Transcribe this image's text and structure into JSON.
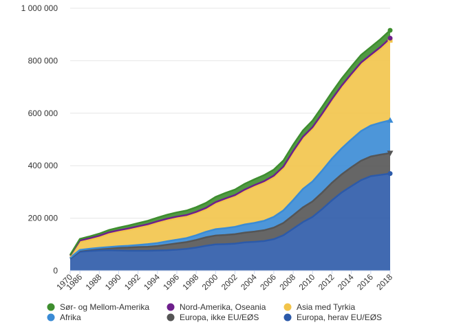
{
  "chart_data": {
    "type": "area",
    "stacked": true,
    "x": [
      1970,
      1986,
      1987,
      1988,
      1989,
      1990,
      1991,
      1992,
      1993,
      1994,
      1995,
      1996,
      1997,
      1998,
      1999,
      2000,
      2001,
      2002,
      2003,
      2004,
      2005,
      2006,
      2007,
      2008,
      2009,
      2010,
      2011,
      2012,
      2013,
      2014,
      2015,
      2016,
      2017,
      2018
    ],
    "x_tick_labels": [
      "1970",
      "1986",
      "1988",
      "1990",
      "1992",
      "1994",
      "1996",
      "1998",
      "2000",
      "2002",
      "2004",
      "2006",
      "2008",
      "2010",
      "2012",
      "2014",
      "2016",
      "2018"
    ],
    "y_ticks": [
      0,
      200000,
      400000,
      600000,
      800000,
      1000000
    ],
    "y_tick_labels": [
      "0",
      "200 000",
      "400 000",
      "600 000",
      "800 000",
      "1 000 000"
    ],
    "ylim": [
      0,
      1000000
    ],
    "grid": "horizontal",
    "legend_position": "bottom",
    "series": [
      {
        "name": "Europa, herav EU/EØS",
        "color": "#2c5aa9",
        "marker": "circle",
        "values": [
          45000,
          72000,
          75000,
          77000,
          78000,
          77000,
          76000,
          76000,
          76000,
          77000,
          78000,
          80000,
          83000,
          88000,
          95000,
          100000,
          101000,
          103000,
          108000,
          110000,
          113000,
          120000,
          135000,
          160000,
          185000,
          205000,
          235000,
          268000,
          298000,
          322000,
          345000,
          360000,
          365000,
          370000
        ]
      },
      {
        "name": "Europa, ikke EU/EØS",
        "color": "#555555",
        "marker": "triangle-down",
        "values": [
          3000,
          5000,
          6000,
          7000,
          8000,
          10000,
          12000,
          14000,
          15000,
          17000,
          21000,
          24000,
          26000,
          29000,
          32000,
          34000,
          35000,
          36000,
          37000,
          39000,
          41000,
          44000,
          47000,
          51000,
          56000,
          59000,
          63000,
          67000,
          69000,
          72000,
          74000,
          75000,
          77000,
          78000
        ]
      },
      {
        "name": "Afrika",
        "color": "#3a8bd5",
        "marker": "triangle-up",
        "values": [
          1000,
          2000,
          2500,
          3000,
          4000,
          6000,
          7000,
          8000,
          10000,
          11000,
          13000,
          14000,
          15000,
          18000,
          21000,
          24000,
          26000,
          28000,
          31000,
          33000,
          36000,
          41000,
          48000,
          58000,
          70000,
          76000,
          84000,
          92000,
          99000,
          106000,
          113000,
          118000,
          122000,
          125000
        ]
      },
      {
        "name": "Asia med Tyrkia",
        "color": "#f2c44a",
        "marker": "square",
        "values": [
          5000,
          30000,
          34000,
          40000,
          50000,
          55000,
          60000,
          65000,
          70000,
          77000,
          80000,
          82000,
          82000,
          83000,
          85000,
          97000,
          107000,
          115000,
          127000,
          138000,
          145000,
          150000,
          160000,
          180000,
          192000,
          200000,
          210000,
          220000,
          232000,
          242000,
          253000,
          262000,
          280000,
          305000
        ]
      },
      {
        "name": "Nord-Amerika, Oseania",
        "color": "#6e1f8c",
        "marker": "circle",
        "values": [
          4000,
          6000,
          6000,
          6000,
          6000,
          6000,
          6000,
          6000,
          6000,
          6000,
          6000,
          6000,
          6000,
          6000,
          6000,
          6000,
          6000,
          6000,
          6000,
          6000,
          6000,
          7000,
          7000,
          7000,
          7000,
          7000,
          7000,
          7000,
          7000,
          8000,
          8000,
          8000,
          8000,
          8000
        ]
      },
      {
        "name": "Sør- og Mellom-Amerika",
        "color": "#3e8e2f",
        "marker": "circle",
        "values": [
          2000,
          6000,
          7000,
          8000,
          9000,
          10000,
          11000,
          12000,
          13000,
          14000,
          15000,
          16000,
          17000,
          18000,
          19000,
          20000,
          21000,
          21000,
          22000,
          22000,
          23000,
          23000,
          23000,
          24000,
          24000,
          25000,
          26000,
          26000,
          27000,
          28000,
          29000,
          29000,
          30000,
          30000
        ]
      }
    ],
    "legend_order": [
      "Sør- og Mellom-Amerika",
      "Nord-Amerika, Oseania",
      "Asia med Tyrkia",
      "Afrika",
      "Europa, ikke EU/EØS",
      "Europa, herav EU/EØS"
    ]
  }
}
